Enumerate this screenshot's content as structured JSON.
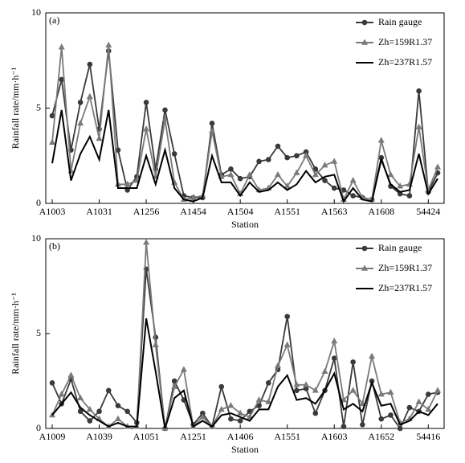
{
  "chart_data": [
    {
      "type": "line",
      "panel_label": "(a)",
      "x_label": "Station",
      "y_label": "Rainfall rate/mm·h⁻¹",
      "categories": [
        "A1003",
        null,
        null,
        null,
        null,
        "A1031",
        null,
        null,
        null,
        null,
        "A1256",
        null,
        null,
        null,
        null,
        "A1454",
        null,
        null,
        null,
        null,
        "A1504",
        null,
        null,
        null,
        null,
        "A1551",
        null,
        null,
        null,
        null,
        "A1563",
        null,
        null,
        null,
        null,
        "A1608",
        null,
        null,
        null,
        null,
        "54424",
        null
      ],
      "ylim": [
        0,
        10
      ],
      "yticks": [
        0,
        5,
        10
      ],
      "legend": "upper right",
      "series": [
        {
          "name": "Rain gauge",
          "color": "#3a3a3a",
          "marker": "circle",
          "values": [
            4.6,
            6.5,
            2.8,
            5.3,
            7.3,
            3.9,
            8.0,
            2.8,
            0.7,
            1.4,
            5.3,
            1.8,
            4.9,
            2.6,
            0.4,
            0.3,
            0.3,
            4.2,
            1.5,
            1.8,
            1.3,
            1.4,
            2.2,
            2.3,
            3.0,
            2.4,
            2.5,
            2.7,
            1.8,
            1.2,
            0.8,
            0.7,
            0.4,
            0.3,
            0.2,
            2.4,
            0.9,
            0.5,
            0.4,
            5.9,
            0.6,
            1.6
          ]
        },
        {
          "name": "Zh=159R1.37",
          "color": "#7a7a7a",
          "marker": "triangle",
          "values": [
            3.2,
            8.2,
            1.7,
            4.2,
            5.6,
            3.4,
            8.3,
            1.0,
            1.0,
            1.2,
            3.9,
            1.4,
            4.4,
            1.1,
            0.2,
            0.3,
            0.4,
            3.8,
            1.4,
            1.5,
            0.5,
            1.5,
            0.7,
            0.8,
            1.5,
            0.9,
            1.6,
            2.5,
            1.5,
            2.0,
            2.2,
            0.2,
            1.2,
            0.3,
            0.2,
            3.3,
            1.5,
            0.9,
            1.0,
            4.0,
            0.7,
            1.9
          ]
        },
        {
          "name": "Zh=237R1.57",
          "color": "#000000",
          "marker": "none",
          "values": [
            2.1,
            4.9,
            1.2,
            2.6,
            3.5,
            2.3,
            4.9,
            0.8,
            0.8,
            0.8,
            2.5,
            1.0,
            2.8,
            0.8,
            0.2,
            0.1,
            0.3,
            2.5,
            1.1,
            1.1,
            0.4,
            1.1,
            0.6,
            0.7,
            1.1,
            0.7,
            1.0,
            1.7,
            1.1,
            1.4,
            1.5,
            0.1,
            0.8,
            0.2,
            0.1,
            2.3,
            1.0,
            0.6,
            0.7,
            2.6,
            0.5,
            1.3
          ]
        }
      ]
    },
    {
      "type": "line",
      "panel_label": "(b)",
      "x_label": "Station",
      "y_label": "Rainfall rate/mm·h⁻¹",
      "categories": [
        "A1009",
        null,
        null,
        null,
        null,
        "A1039",
        null,
        null,
        null,
        null,
        "A1051",
        null,
        null,
        null,
        null,
        "A1251",
        null,
        null,
        null,
        null,
        "A1406",
        null,
        null,
        null,
        null,
        "A1551",
        null,
        null,
        null,
        null,
        "A1603",
        null,
        null,
        null,
        null,
        "A1652",
        null,
        null,
        null,
        null,
        "54416",
        null
      ],
      "ylim": [
        0,
        10
      ],
      "yticks": [
        0,
        5,
        10
      ],
      "legend": "upper right",
      "series": [
        {
          "name": "Rain gauge",
          "color": "#3a3a3a",
          "marker": "circle",
          "values": [
            2.4,
            1.3,
            2.6,
            0.9,
            0.4,
            0.9,
            2.0,
            1.2,
            0.9,
            0.3,
            8.4,
            4.8,
            0.0,
            2.5,
            1.5,
            0.2,
            0.8,
            0.1,
            2.2,
            0.5,
            0.4,
            0.9,
            1.2,
            2.4,
            3.1,
            5.9,
            2.0,
            2.1,
            0.8,
            2.0,
            3.7,
            0.1,
            3.5,
            0.2,
            2.5,
            0.5,
            0.7,
            0.0,
            1.1,
            0.9,
            1.8,
            1.9
          ]
        },
        {
          "name": "Zh=159R1.37",
          "color": "#7a7a7a",
          "marker": "triangle",
          "values": [
            0.7,
            1.8,
            2.8,
            1.6,
            1.0,
            0.5,
            0.1,
            0.5,
            0.1,
            0.1,
            9.8,
            4.4,
            0.0,
            2.2,
            3.1,
            0.1,
            0.6,
            0.1,
            1.0,
            1.2,
            0.8,
            0.6,
            1.5,
            1.4,
            3.3,
            4.4,
            2.3,
            2.3,
            2.0,
            3.0,
            4.6,
            1.5,
            2.0,
            1.3,
            3.8,
            1.8,
            1.9,
            0.3,
            0.5,
            1.4,
            1.0,
            2.0
          ]
        },
        {
          "name": "Zh=237R1.57",
          "color": "#000000",
          "marker": "none",
          "values": [
            0.7,
            1.3,
            1.9,
            1.1,
            0.7,
            0.4,
            0.1,
            0.3,
            0.1,
            0.1,
            5.8,
            3.0,
            0.0,
            1.6,
            2.0,
            0.1,
            0.4,
            0.1,
            0.7,
            0.8,
            0.6,
            0.4,
            1.0,
            1.0,
            2.2,
            2.8,
            1.5,
            1.6,
            1.3,
            2.0,
            2.9,
            1.0,
            1.3,
            0.9,
            2.4,
            1.2,
            1.3,
            0.2,
            0.4,
            0.9,
            0.7,
            1.3
          ]
        }
      ]
    }
  ]
}
